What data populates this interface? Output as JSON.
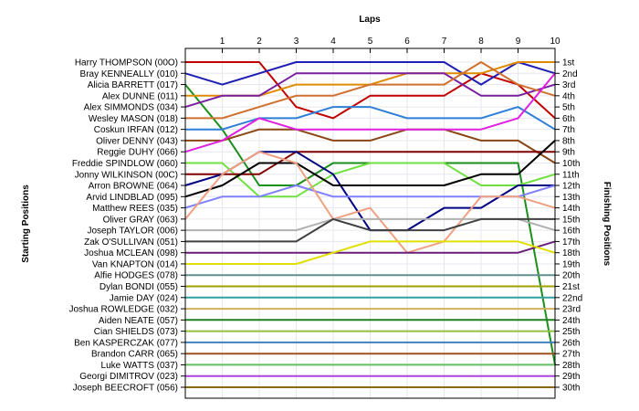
{
  "chart_data": {
    "type": "line",
    "title": "",
    "xlabel": "Laps",
    "ylabel_left": "Starting Positions",
    "ylabel_right": "Finishing Positions",
    "x": [
      0,
      1,
      2,
      3,
      4,
      5,
      6,
      7,
      8,
      9,
      10
    ],
    "x_tick_labels": [
      "1",
      "2",
      "3",
      "4",
      "5",
      "6",
      "7",
      "8",
      "9",
      "10"
    ],
    "finish_labels": [
      "1st",
      "2nd",
      "3rd",
      "4th",
      "5th",
      "6th",
      "7th",
      "8th",
      "9th",
      "10th",
      "11th",
      "12th",
      "13th",
      "14th",
      "15th",
      "16th",
      "17th",
      "18th",
      "19th",
      "20th",
      "21st",
      "22nd",
      "23rd",
      "24th",
      "25th",
      "26th",
      "27th",
      "28th",
      "29th",
      "30th"
    ],
    "ylim": [
      1,
      30
    ],
    "grid": true,
    "series": [
      {
        "name": "Harry THOMPSON (00O)",
        "color": "#c00000",
        "values": [
          1,
          1,
          1,
          5,
          6,
          4,
          4,
          4,
          2,
          3,
          6
        ]
      },
      {
        "name": "Bray KENNEALLY (010)",
        "color": "#1f1fb4",
        "values": [
          2,
          3,
          2,
          1,
          1,
          1,
          1,
          1,
          3,
          1,
          2
        ]
      },
      {
        "name": "Alicia BARRETT (017)",
        "color": "#1a8f1a",
        "values": [
          3,
          7,
          12,
          12,
          10,
          10,
          10,
          10,
          10,
          10,
          28
        ]
      },
      {
        "name": "Alex DUNNE (011)",
        "color": "#e08a00",
        "values": [
          4,
          4,
          4,
          3,
          3,
          3,
          2,
          2,
          2,
          1,
          1
        ]
      },
      {
        "name": "Alex SIMMONDS (034)",
        "color": "#7a1fa0",
        "values": [
          5,
          4,
          4,
          2,
          2,
          2,
          2,
          2,
          4,
          4,
          3
        ]
      },
      {
        "name": "Wesley MASON (018)",
        "color": "#d07030",
        "values": [
          6,
          6,
          5,
          4,
          4,
          3,
          3,
          3,
          1,
          3,
          4
        ]
      },
      {
        "name": "Coskun IRFAN (012)",
        "color": "#2f7fd8",
        "values": [
          7,
          7,
          6,
          6,
          5,
          5,
          6,
          6,
          6,
          5,
          7
        ]
      },
      {
        "name": "Oliver DENNY (043)",
        "color": "#8b4513",
        "values": [
          8,
          8,
          7,
          7,
          8,
          8,
          7,
          7,
          8,
          8,
          10
        ]
      },
      {
        "name": "Reggie DUHY (066)",
        "color": "#e020e0",
        "values": [
          9,
          8,
          6,
          7,
          7,
          7,
          7,
          7,
          7,
          6,
          2
        ]
      },
      {
        "name": "Freddie SPINDLOW (060)",
        "color": "#70e040",
        "values": [
          10,
          10,
          13,
          13,
          11,
          10,
          10,
          10,
          12,
          12,
          11
        ]
      },
      {
        "name": "Jonny WILKINSON (00C)",
        "color": "#800000",
        "values": [
          11,
          11,
          11,
          9,
          9,
          9,
          9,
          9,
          9,
          9,
          9
        ]
      },
      {
        "name": "Arron BROWNE (064)",
        "color": "#000080",
        "values": [
          12,
          11,
          9,
          9,
          11,
          16,
          16,
          14,
          14,
          12,
          12
        ]
      },
      {
        "name": "Arvid LINDBLAD (095)",
        "color": "#000000",
        "values": [
          13,
          12,
          10,
          10,
          12,
          12,
          12,
          12,
          11,
          11,
          8
        ]
      },
      {
        "name": "Matthew REES (035)",
        "color": "#8080ff",
        "values": [
          14,
          13,
          13,
          12,
          13,
          13,
          13,
          13,
          13,
          13,
          12
        ]
      },
      {
        "name": "Oliver GRAY (063)",
        "color": "#f0a080",
        "values": [
          15,
          11,
          9,
          10,
          15,
          14,
          18,
          17,
          13,
          13,
          14
        ]
      },
      {
        "name": "Joseph TAYLOR (006)",
        "color": "#b0b0b0",
        "values": [
          16,
          16,
          16,
          16,
          15,
          15,
          15,
          15,
          15,
          15,
          16
        ]
      },
      {
        "name": "Zak O'SULLIVAN (051)",
        "color": "#404040",
        "values": [
          17,
          17,
          17,
          17,
          15,
          16,
          16,
          16,
          15,
          15,
          15
        ]
      },
      {
        "name": "Joshua MCLEAN (098)",
        "color": "#6a1f7a",
        "values": [
          18,
          18,
          18,
          18,
          18,
          18,
          18,
          18,
          18,
          18,
          17
        ]
      },
      {
        "name": "Van KNAPTON (014)",
        "color": "#e0e000",
        "values": [
          19,
          19,
          19,
          19,
          18,
          17,
          17,
          17,
          17,
          17,
          18
        ]
      },
      {
        "name": "Alfie HODGES (078)",
        "color": "#609090",
        "values": [
          20,
          20,
          20,
          20,
          20,
          20,
          20,
          20,
          20,
          20,
          20
        ]
      },
      {
        "name": "Dylan BONDI (055)",
        "color": "#a0a000",
        "values": [
          21,
          21,
          21,
          21,
          21,
          21,
          21,
          21,
          21,
          21,
          21
        ]
      },
      {
        "name": "Jamie DAY (024)",
        "color": "#30a0a0",
        "values": [
          22,
          22,
          22,
          22,
          22,
          22,
          22,
          22,
          22,
          22,
          22
        ]
      },
      {
        "name": "Joshua ROWLEDGE (032)",
        "color": "#d0b060",
        "values": [
          23,
          23,
          23,
          23,
          23,
          23,
          23,
          23,
          23,
          23,
          23
        ]
      },
      {
        "name": "Aiden NEATE (057)",
        "color": "#208020",
        "values": [
          24,
          24,
          24,
          24,
          24,
          24,
          24,
          24,
          24,
          24,
          24
        ]
      },
      {
        "name": "Cian SHIELDS (073)",
        "color": "#90c040",
        "values": [
          25,
          25,
          25,
          25,
          25,
          25,
          25,
          25,
          25,
          25,
          25
        ]
      },
      {
        "name": "Ben KASPERCZAK (077)",
        "color": "#4080c0",
        "values": [
          26,
          26,
          26,
          26,
          26,
          26,
          26,
          26,
          26,
          26,
          26
        ]
      },
      {
        "name": "Brandon CARR (065)",
        "color": "#a05020",
        "values": [
          27,
          27,
          27,
          27,
          27,
          27,
          27,
          27,
          27,
          27,
          27
        ]
      },
      {
        "name": "Luke WATTS (037)",
        "color": "#60c060",
        "values": [
          28,
          28,
          28,
          28,
          28,
          28,
          28,
          28,
          28,
          28,
          28
        ]
      },
      {
        "name": "Georgi DIMITROV (023)",
        "color": "#b040e0",
        "values": [
          29,
          29,
          29,
          29,
          29,
          29,
          29,
          29,
          29,
          29,
          29
        ]
      },
      {
        "name": "Joseph BEECROFT (056)",
        "color": "#8b6914",
        "values": [
          30,
          30,
          30,
          30,
          30,
          30,
          30,
          30,
          30,
          30,
          30
        ]
      }
    ]
  }
}
